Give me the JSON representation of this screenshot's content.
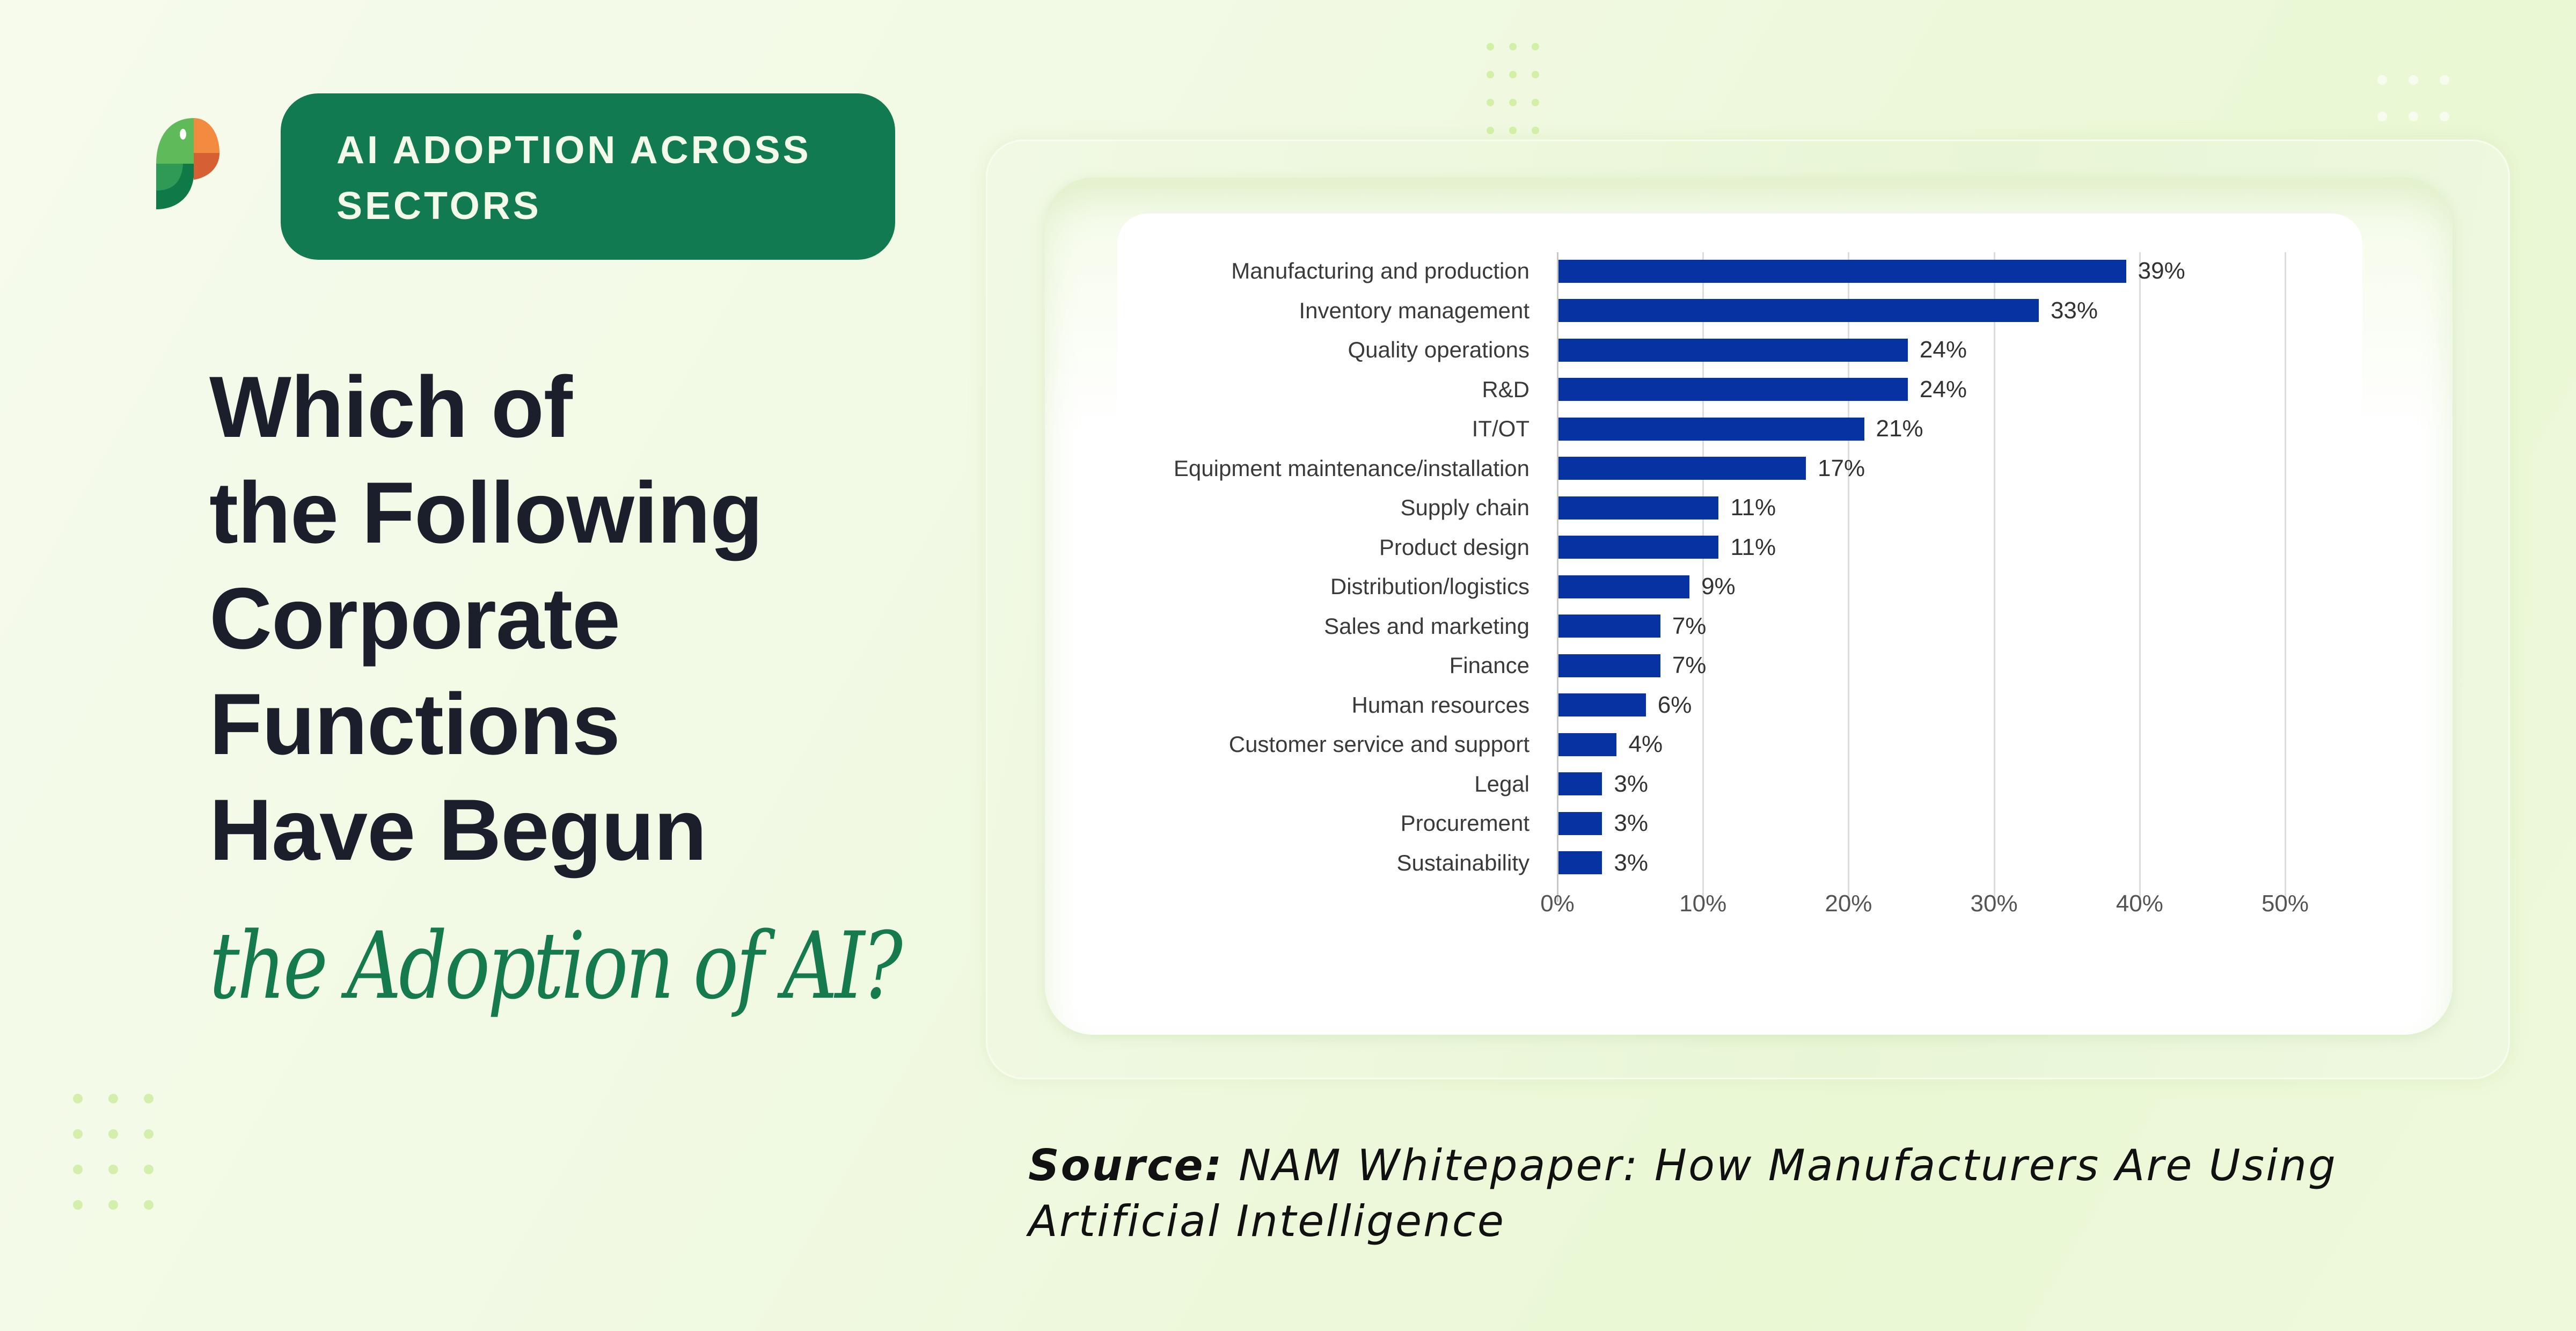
{
  "badge": {
    "label": "AI ADOPTION ACROSS SECTORS"
  },
  "logo": {
    "icon": "parrot-logo-icon"
  },
  "headline": {
    "lines": [
      "Which of",
      "the Following",
      "Corporate",
      "Functions",
      "Have Begun"
    ],
    "italic_line": "the Adoption of AI?"
  },
  "source": {
    "label": "Source:",
    "text": "NAM Whitepaper: How Manufacturers Are Using Artificial Intelligence"
  },
  "colors": {
    "bar": "#0633a1",
    "badge_bg": "#127a50",
    "headline": "#1b1f2b",
    "italic_accent": "#157a4e"
  },
  "chart_data": {
    "type": "bar",
    "orientation": "horizontal",
    "title": "Which of the Following Corporate Functions Have Begun the Adoption of AI?",
    "xlabel": "",
    "ylabel": "",
    "categories": [
      "Manufacturing and production",
      "Inventory management",
      "Quality operations",
      "R&D",
      "IT/OT",
      "Equipment maintenance/installation",
      "Supply chain",
      "Product design",
      "Distribution/logistics",
      "Sales and marketing",
      "Finance",
      "Human resources",
      "Customer service and support",
      "Legal",
      "Procurement",
      "Sustainability"
    ],
    "values": [
      39,
      33,
      24,
      24,
      21,
      17,
      11,
      11,
      9,
      7,
      7,
      6,
      4,
      3,
      3,
      3
    ],
    "value_labels": [
      "39%",
      "33%",
      "24%",
      "24%",
      "21%",
      "17%",
      "11%",
      "11%",
      "9%",
      "7%",
      "7%",
      "6%",
      "4%",
      "3%",
      "3%",
      "3%"
    ],
    "xlim": [
      0,
      50
    ],
    "xticks": [
      0,
      10,
      20,
      30,
      40,
      50
    ],
    "xtick_labels": [
      "0%",
      "10%",
      "20%",
      "30%",
      "40%",
      "50%"
    ],
    "grid": "vertical",
    "legend": "none",
    "source": "NAM Whitepaper: How Manufacturers Are Using Artificial Intelligence"
  }
}
